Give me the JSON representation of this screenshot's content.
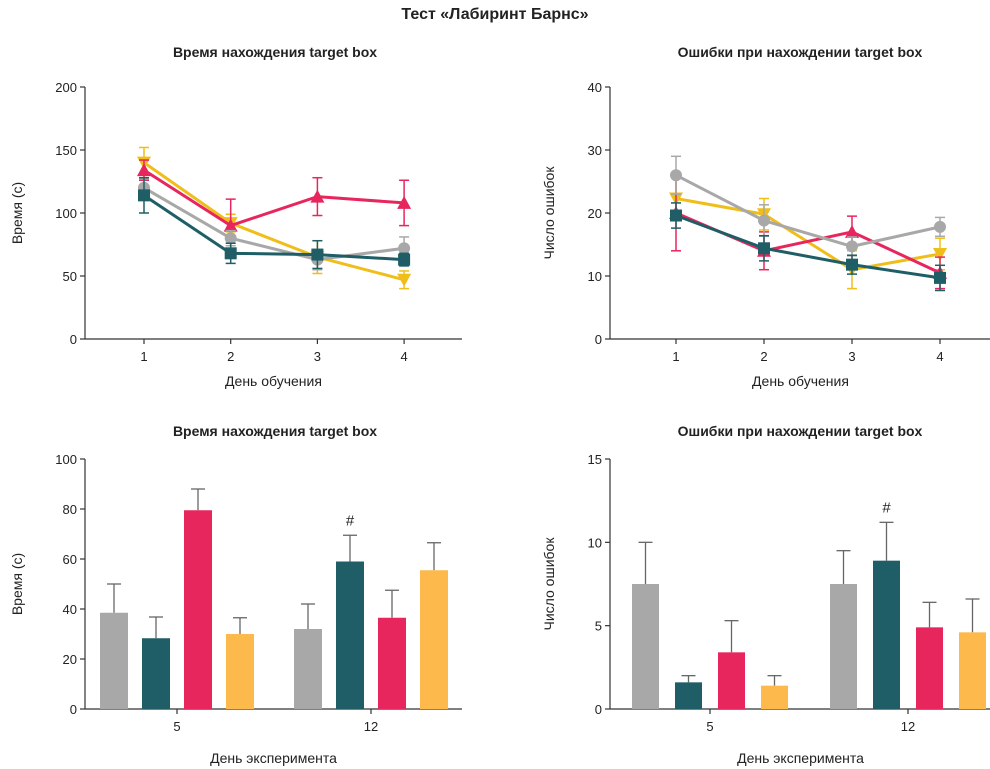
{
  "figure_title": "Тест «Лабиринт Барнс»",
  "chart_data": [
    {
      "type": "line",
      "title": "Время нахождения target box",
      "xlabel": "День обучения",
      "ylabel": "Время (с)",
      "categories": [
        "1",
        "2",
        "3",
        "4"
      ],
      "ylim": [
        0,
        200
      ],
      "yticks": [
        0,
        50,
        100,
        150,
        200
      ],
      "series": [
        {
          "color": "#f0be18",
          "marker": "triangle-down",
          "values": [
            140,
            92,
            65,
            47
          ],
          "errors": [
            12,
            7,
            13,
            7
          ]
        },
        {
          "color": "#e8265e",
          "marker": "triangle-up",
          "values": [
            134,
            90,
            113,
            108
          ],
          "errors": [
            8,
            21,
            15,
            18
          ]
        },
        {
          "color": "#a8a8a8",
          "marker": "circle",
          "values": [
            120,
            80,
            63,
            72
          ],
          "errors": [
            7,
            6,
            8,
            9
          ]
        },
        {
          "color": "#1f5e66",
          "marker": "square",
          "values": [
            114,
            68,
            67,
            63
          ],
          "errors": [
            14,
            8,
            11,
            5
          ]
        }
      ]
    },
    {
      "type": "line",
      "title": "Ошибки при нахождении target box",
      "xlabel": "День обучения",
      "ylabel": "Число ошибок",
      "categories": [
        "1",
        "2",
        "3",
        "4"
      ],
      "ylim": [
        0,
        40
      ],
      "yticks": [
        0,
        10,
        20,
        30,
        40
      ],
      "series": [
        {
          "color": "#f0be18",
          "marker": "triangle-down",
          "values": [
            22.3,
            19.8,
            11.0,
            13.5
          ],
          "errors": [
            3.5,
            2.5,
            3.0,
            2.5
          ]
        },
        {
          "color": "#e8265e",
          "marker": "triangle-up",
          "values": [
            20,
            14,
            17,
            10.5
          ],
          "errors": [
            6,
            3,
            2.5,
            2.5
          ]
        },
        {
          "color": "#a8a8a8",
          "marker": "circle",
          "values": [
            26,
            18.8,
            14.7,
            17.8
          ],
          "errors": [
            3,
            2.5,
            1.5,
            1.5
          ]
        },
        {
          "color": "#1f5e66",
          "marker": "square",
          "values": [
            19.6,
            14.4,
            11.8,
            9.7
          ],
          "errors": [
            2,
            2,
            1.5,
            2
          ]
        }
      ]
    },
    {
      "type": "bar",
      "title": "Время нахождения target box",
      "xlabel": "День эксперимента",
      "ylabel": "Время (с)",
      "categories": [
        "5",
        "12"
      ],
      "ylim": [
        0,
        100
      ],
      "yticks": [
        0,
        20,
        40,
        60,
        80,
        100
      ],
      "series": [
        {
          "color": "#a8a8a8",
          "values": [
            38.5,
            32
          ],
          "errors": [
            11.5,
            10
          ]
        },
        {
          "color": "#1f5e66",
          "values": [
            28.3,
            59
          ],
          "errors": [
            8.5,
            10.5
          ]
        },
        {
          "color": "#e8265e",
          "values": [
            79.5,
            36.5
          ],
          "errors": [
            8.5,
            11
          ]
        },
        {
          "color": "#fdb94b",
          "values": [
            30,
            55.5
          ],
          "errors": [
            6.5,
            11
          ]
        }
      ],
      "annotations": [
        {
          "text": "#",
          "category": "12",
          "series_index": 1
        }
      ]
    },
    {
      "type": "bar",
      "title": "Ошибки при нахождении target box",
      "xlabel": "День эксперимента",
      "ylabel": "Число ошибок",
      "categories": [
        "5",
        "12"
      ],
      "ylim": [
        0,
        15
      ],
      "yticks": [
        0,
        5,
        10,
        15
      ],
      "series": [
        {
          "color": "#a8a8a8",
          "values": [
            7.5,
            7.5
          ],
          "errors": [
            2.5,
            2.0
          ]
        },
        {
          "color": "#1f5e66",
          "values": [
            1.6,
            8.9
          ],
          "errors": [
            0.4,
            2.3
          ]
        },
        {
          "color": "#e8265e",
          "values": [
            3.4,
            4.9
          ],
          "errors": [
            1.9,
            1.5
          ]
        },
        {
          "color": "#fdb94b",
          "values": [
            1.4,
            4.6
          ],
          "errors": [
            0.6,
            2.0
          ]
        }
      ],
      "annotations": [
        {
          "text": "#",
          "category": "12",
          "series_index": 1
        }
      ]
    }
  ]
}
